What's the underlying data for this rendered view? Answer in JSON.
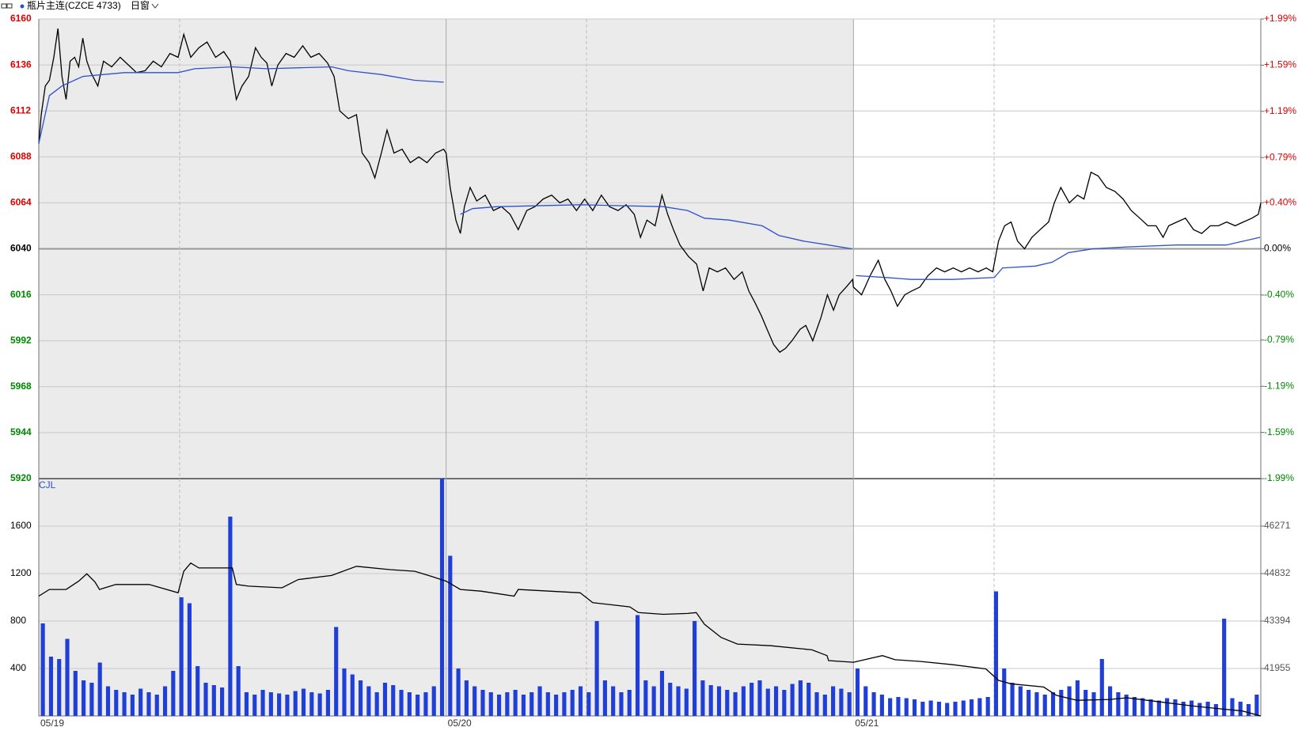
{
  "toolbar": {
    "period": "日窗"
  },
  "chart_data": [
    {
      "type": "line",
      "title": "瓶片主连(CZCE 4733)",
      "xlim": [
        0,
        3
      ],
      "ylim": [
        5920,
        6160
      ],
      "yticks": [
        5920,
        5944,
        5968,
        5992,
        6016,
        6040,
        6064,
        6088,
        6112,
        6136,
        6160
      ],
      "y2lim": [
        -1.99,
        1.99
      ],
      "y2ticks": [
        {
          "value": -1.99,
          "label": "-1.99%"
        },
        {
          "value": -1.59,
          "label": "-1.59%"
        },
        {
          "value": -1.19,
          "label": "-1.19%"
        },
        {
          "value": -0.79,
          "label": "-0.79%"
        },
        {
          "value": -0.4,
          "label": "-0.40%"
        },
        {
          "value": 0,
          "label": "0.00%"
        },
        {
          "value": 0.4,
          "label": "+0.40%"
        },
        {
          "value": 0.79,
          "label": "+0.79%"
        },
        {
          "value": 1.19,
          "label": "+1.19%"
        },
        {
          "value": 1.59,
          "label": "+1.59%"
        },
        {
          "value": 1.99,
          "label": "+1.99%"
        }
      ],
      "grid": true,
      "up_color": "#e00000",
      "down_color": "#008800",
      "series": [
        {
          "type": "line",
          "color": "#000000",
          "x": [
            0,
            0.006,
            0.016,
            0.026,
            0.037,
            0.047,
            0.057,
            0.067,
            0.077,
            0.088,
            0.098,
            0.108,
            0.118,
            0.128,
            0.145,
            0.159,
            0.179,
            0.2,
            0.22,
            0.24,
            0.261,
            0.281,
            0.301,
            0.322,
            0.342,
            0.356,
            0.373,
            0.393,
            0.413,
            0.434,
            0.454,
            0.47,
            0.485,
            0.499,
            0.515,
            0.532,
            0.546,
            0.56,
            0.572,
            0.587,
            0.607,
            0.627,
            0.648,
            0.668,
            0.688,
            0.709,
            0.725,
            0.739,
            0.76,
            0.78,
            0.794,
            0.811,
            0.825,
            0.841,
            0.855,
            0.872,
            0.892,
            0.912,
            0.933,
            0.953,
            0.974,
            0.994,
            1.0,
            1.01,
            1.024,
            1.035,
            1.045,
            1.059,
            1.075,
            1.096,
            1.116,
            1.136,
            1.157,
            1.177,
            1.198,
            1.218,
            1.238,
            1.259,
            1.279,
            1.299,
            1.32,
            1.34,
            1.36,
            1.381,
            1.401,
            1.422,
            1.442,
            1.462,
            1.477,
            1.493,
            1.513,
            1.53,
            1.544,
            1.558,
            1.574,
            1.595,
            1.615,
            1.631,
            1.646,
            1.666,
            1.686,
            1.707,
            1.727,
            1.743,
            1.758,
            1.774,
            1.788,
            1.804,
            1.819,
            1.833,
            1.849,
            1.869,
            1.883,
            1.9,
            1.92,
            1.936,
            1.951,
            1.965,
            1.982,
            1.998,
            2.0,
            2.02,
            2.041,
            2.061,
            2.077,
            2.092,
            2.108,
            2.126,
            2.143,
            2.163,
            2.183,
            2.204,
            2.224,
            2.245,
            2.265,
            2.285,
            2.306,
            2.326,
            2.342,
            2.356,
            2.371,
            2.387,
            2.403,
            2.42,
            2.438,
            2.458,
            2.479,
            2.493,
            2.509,
            2.53,
            2.55,
            2.566,
            2.583,
            2.601,
            2.621,
            2.642,
            2.662,
            2.682,
            2.703,
            2.723,
            2.743,
            2.76,
            2.774,
            2.794,
            2.815,
            2.835,
            2.855,
            2.876,
            2.896,
            2.916,
            2.937,
            2.957,
            2.978,
            2.994,
            3.0
          ],
          "values": [
            6095,
            6110,
            6125,
            6128,
            6140,
            6155,
            6130,
            6118,
            6138,
            6140,
            6135,
            6150,
            6138,
            6132,
            6125,
            6138,
            6135,
            6140,
            6136,
            6132,
            6133,
            6138,
            6135,
            6142,
            6140,
            6152,
            6140,
            6145,
            6148,
            6140,
            6143,
            6138,
            6118,
            6125,
            6130,
            6145,
            6140,
            6137,
            6125,
            6136,
            6142,
            6140,
            6146,
            6140,
            6142,
            6137,
            6130,
            6112,
            6108,
            6110,
            6090,
            6085,
            6077,
            6090,
            6102,
            6090,
            6092,
            6085,
            6088,
            6085,
            6090,
            6092,
            6090,
            6072,
            6055,
            6048,
            6062,
            6072,
            6065,
            6068,
            6060,
            6062,
            6058,
            6050,
            6060,
            6062,
            6066,
            6068,
            6064,
            6066,
            6060,
            6066,
            6060,
            6068,
            6062,
            6060,
            6063,
            6058,
            6046,
            6055,
            6052,
            6068,
            6058,
            6050,
            6042,
            6036,
            6032,
            6018,
            6030,
            6028,
            6030,
            6024,
            6028,
            6018,
            6012,
            6005,
            5998,
            5990,
            5986,
            5988,
            5992,
            5998,
            6000,
            5992,
            6004,
            6016,
            6008,
            6016,
            6020,
            6024,
            6020,
            6016,
            6026,
            6034,
            6024,
            6018,
            6010,
            6016,
            6018,
            6020,
            6026,
            6030,
            6028,
            6030,
            6028,
            6030,
            6028,
            6030,
            6028,
            6044,
            6052,
            6054,
            6044,
            6040,
            6046,
            6050,
            6054,
            6064,
            6072,
            6064,
            6068,
            6066,
            6080,
            6078,
            6072,
            6070,
            6066,
            6060,
            6056,
            6052,
            6052,
            6046,
            6052,
            6054,
            6056,
            6050,
            6048,
            6052,
            6052,
            6054,
            6052,
            6054,
            6056,
            6058,
            6064
          ]
        },
        {
          "type": "line",
          "color": "#2f50cc",
          "x": [
            0,
            0.026,
            0.057,
            0.108,
            0.21,
            0.342,
            0.383,
            0.475,
            0.56,
            0.719,
            0.76,
            0.841,
            0.923,
            0.994,
            1.0,
            1.035,
            1.065,
            1.126,
            1.329,
            1.533,
            1.593,
            1.634,
            1.695,
            1.776,
            1.817,
            1.878,
            1.939,
            1.996,
            2.003,
            2.006,
            2.081,
            2.142,
            2.244,
            2.346,
            2.366,
            2.447,
            2.488,
            2.528,
            2.589,
            2.671,
            2.793,
            2.915,
            2.998
          ],
          "values": [
            6095,
            6120,
            6125,
            6130,
            6132,
            6132,
            6134,
            6135,
            6134,
            6135,
            6133,
            6131,
            6128,
            6127,
            null,
            6058,
            6061,
            6062,
            6063,
            6062,
            6060,
            6056,
            6055,
            6052,
            6047,
            6044,
            6042,
            6040,
            null,
            6026,
            6025,
            6024,
            6024,
            6025,
            6030,
            6031,
            6033,
            6038,
            6040,
            6041,
            6042,
            6042,
            6046
          ]
        }
      ]
    },
    {
      "type": "bar",
      "label": "CJL",
      "xlim": [
        0,
        3
      ],
      "xticks": [
        {
          "value": 0,
          "label": "05/19"
        },
        {
          "value": 1,
          "label": "05/20"
        },
        {
          "value": 2,
          "label": "05/21"
        }
      ],
      "ylim": [
        0,
        2000
      ],
      "yticks": [
        400,
        800,
        1200,
        1600
      ],
      "y2lim": [
        40516,
        47710
      ],
      "y2ticks": [
        41955,
        43394,
        44832,
        46271
      ],
      "grid": true,
      "series": [
        {
          "type": "bar",
          "color": "#1f3fd6",
          "x": [
            0.01,
            0.03,
            0.05,
            0.07,
            0.09,
            0.11,
            0.13,
            0.15,
            0.17,
            0.19,
            0.21,
            0.23,
            0.25,
            0.27,
            0.29,
            0.31,
            0.33,
            0.35,
            0.37,
            0.39,
            0.41,
            0.43,
            0.45,
            0.47,
            0.49,
            0.51,
            0.53,
            0.55,
            0.57,
            0.59,
            0.61,
            0.63,
            0.65,
            0.67,
            0.69,
            0.71,
            0.73,
            0.75,
            0.77,
            0.79,
            0.81,
            0.83,
            0.85,
            0.87,
            0.89,
            0.91,
            0.93,
            0.95,
            0.97,
            0.99,
            1.01,
            1.03,
            1.05,
            1.07,
            1.09,
            1.11,
            1.13,
            1.15,
            1.17,
            1.19,
            1.21,
            1.23,
            1.25,
            1.27,
            1.29,
            1.31,
            1.33,
            1.35,
            1.37,
            1.39,
            1.41,
            1.43,
            1.45,
            1.47,
            1.49,
            1.51,
            1.53,
            1.55,
            1.57,
            1.59,
            1.61,
            1.63,
            1.65,
            1.67,
            1.69,
            1.71,
            1.73,
            1.75,
            1.77,
            1.79,
            1.81,
            1.83,
            1.85,
            1.87,
            1.89,
            1.91,
            1.93,
            1.95,
            1.97,
            1.99,
            2.01,
            2.03,
            2.05,
            2.07,
            2.09,
            2.11,
            2.13,
            2.15,
            2.17,
            2.19,
            2.21,
            2.23,
            2.25,
            2.27,
            2.29,
            2.31,
            2.33,
            2.35,
            2.37,
            2.39,
            2.41,
            2.43,
            2.45,
            2.47,
            2.49,
            2.51,
            2.53,
            2.55,
            2.57,
            2.59,
            2.61,
            2.63,
            2.65,
            2.67,
            2.69,
            2.71,
            2.73,
            2.75,
            2.77,
            2.79,
            2.81,
            2.83,
            2.85,
            2.87,
            2.89,
            2.91,
            2.93,
            2.95,
            2.97,
            2.99
          ],
          "values": [
            780,
            500,
            480,
            650,
            380,
            300,
            280,
            450,
            250,
            220,
            200,
            180,
            230,
            200,
            180,
            250,
            380,
            1000,
            950,
            420,
            280,
            260,
            240,
            1680,
            420,
            200,
            180,
            220,
            200,
            190,
            180,
            210,
            230,
            200,
            190,
            220,
            750,
            400,
            350,
            300,
            250,
            200,
            280,
            260,
            220,
            200,
            180,
            200,
            250,
            2000,
            1350,
            400,
            300,
            250,
            220,
            200,
            180,
            200,
            220,
            180,
            200,
            250,
            200,
            180,
            200,
            220,
            250,
            200,
            800,
            300,
            250,
            200,
            220,
            850,
            300,
            250,
            380,
            280,
            250,
            230,
            800,
            300,
            260,
            250,
            220,
            200,
            250,
            280,
            300,
            230,
            250,
            220,
            270,
            300,
            280,
            200,
            180,
            250,
            230,
            200,
            400,
            250,
            200,
            180,
            150,
            160,
            150,
            140,
            120,
            130,
            120,
            110,
            120,
            130,
            140,
            150,
            160,
            1050,
            400,
            280,
            250,
            220,
            200,
            180,
            200,
            220,
            250,
            300,
            220,
            200,
            480,
            250,
            200,
            180,
            160,
            150,
            140,
            130,
            150,
            140,
            120,
            130,
            110,
            120,
            100,
            820,
            150,
            120,
            100,
            180
          ]
        },
        {
          "type": "line",
          "axis": "y2",
          "color": "#000000",
          "x": [
            0,
            0.026,
            0.067,
            0.098,
            0.118,
            0.138,
            0.149,
            0.189,
            0.271,
            0.342,
            0.356,
            0.373,
            0.393,
            0.475,
            0.485,
            0.515,
            0.597,
            0.637,
            0.719,
            0.78,
            0.862,
            0.923,
            0.963,
            1.0,
            1.035,
            1.085,
            1.167,
            1.177,
            1.329,
            1.36,
            1.451,
            1.472,
            1.533,
            1.593,
            1.614,
            1.634,
            1.675,
            1.715,
            1.797,
            1.898,
            1.935,
            1.939,
            2.0,
            2.071,
            2.102,
            2.163,
            2.244,
            2.325,
            2.356,
            2.386,
            2.467,
            2.498,
            2.549,
            2.63,
            2.671,
            2.752,
            2.833,
            2.894,
            2.955,
            3.0
          ],
          "values": [
            44150,
            44350,
            44350,
            44601,
            44826,
            44576,
            44350,
            44501,
            44501,
            44250,
            44902,
            45152,
            45002,
            45002,
            44501,
            44450,
            44400,
            44651,
            44776,
            45052,
            44952,
            44902,
            44751,
            44601,
            44350,
            44300,
            44150,
            44350,
            44250,
            43949,
            43824,
            43649,
            43598,
            43623,
            43649,
            43298,
            42897,
            42696,
            42646,
            42521,
            42345,
            42195,
            42145,
            42345,
            42220,
            42170,
            42070,
            41944,
            41594,
            41493,
            41393,
            41143,
            40992,
            41017,
            41067,
            40942,
            40817,
            40742,
            40666,
            40516
          ]
        }
      ]
    }
  ]
}
